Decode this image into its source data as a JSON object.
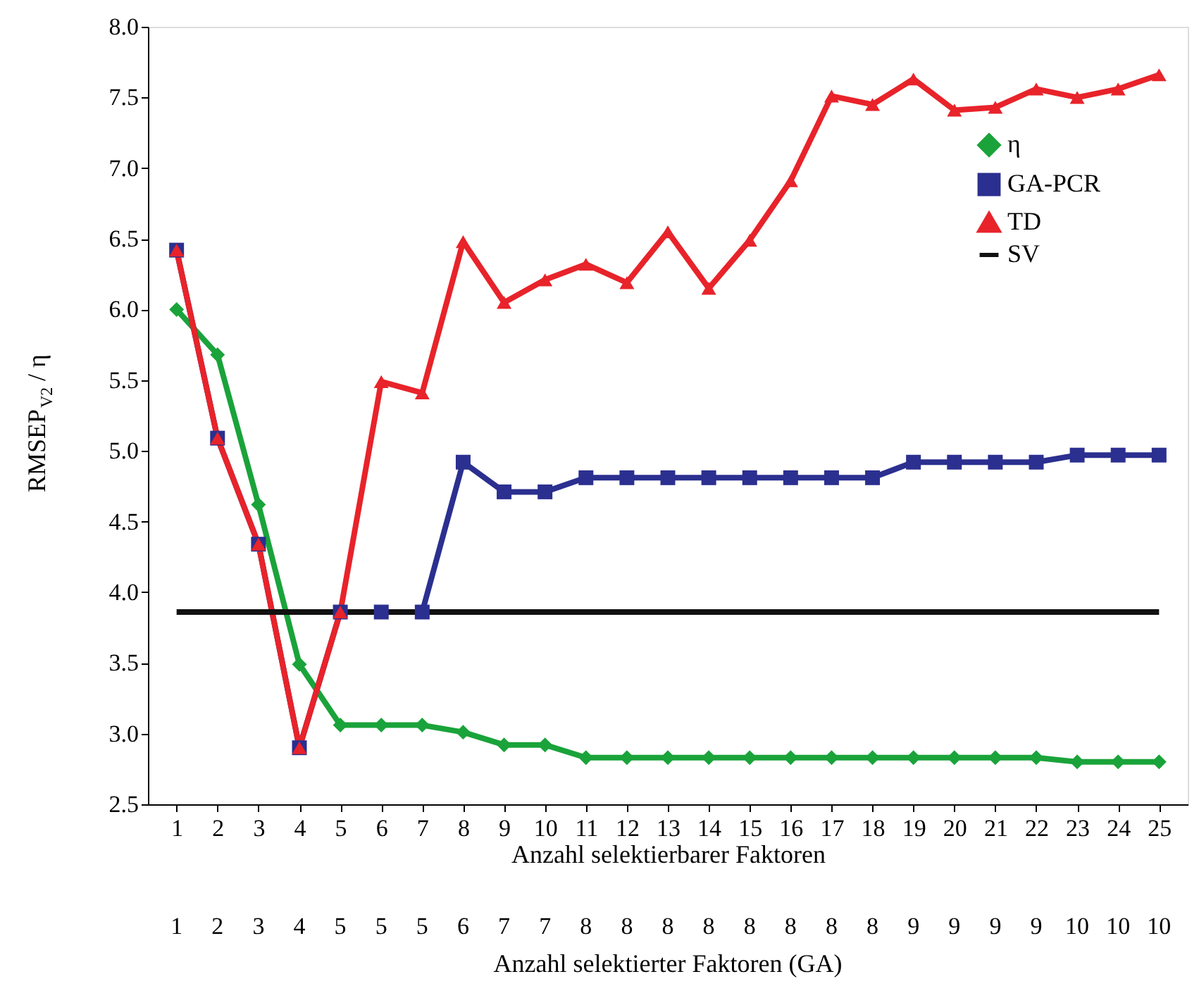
{
  "chart_data": {
    "type": "line",
    "xlabel": "Anzahl selektierbarer Faktoren",
    "ylabel": "RMSEP$_{V2}$ / η",
    "x": [
      1,
      2,
      3,
      4,
      5,
      6,
      7,
      8,
      9,
      10,
      11,
      12,
      13,
      14,
      15,
      16,
      17,
      18,
      19,
      20,
      21,
      22,
      23,
      24,
      25
    ],
    "xlim": [
      0.3,
      25.7
    ],
    "xticks": [
      1,
      2,
      3,
      4,
      5,
      6,
      7,
      8,
      9,
      10,
      11,
      12,
      13,
      14,
      15,
      16,
      17,
      18,
      19,
      20,
      21,
      22,
      23,
      24,
      25
    ],
    "annotations": [
      "1",
      "2",
      "3",
      "4",
      "5",
      "5",
      "5",
      "6",
      "7",
      "7",
      "8",
      "8",
      "8",
      "8",
      "8",
      "8",
      "8",
      "8",
      "9",
      "9",
      "9",
      "9",
      "10",
      "10",
      "10",
      "Anzahl selektierter Faktoren (GA)"
    ],
    "ylim": [
      2.5,
      8.0
    ],
    "yticks": [
      {
        "value": 2.5,
        "label": "2.5"
      },
      {
        "value": 3,
        "label": "3.0"
      },
      {
        "value": 3.5,
        "label": "3.5"
      },
      {
        "value": 4,
        "label": "4.0"
      },
      {
        "value": 4.5,
        "label": "4.5"
      },
      {
        "value": 5,
        "label": "5.0"
      },
      {
        "value": 5.5,
        "label": "5.5"
      },
      {
        "value": 6,
        "label": "6.0"
      },
      {
        "value": 6.5,
        "label": "6.5"
      },
      {
        "value": 7,
        "label": "7.0"
      },
      {
        "value": 7.5,
        "label": "7.5"
      },
      {
        "value": 8,
        "label": "8.0"
      }
    ],
    "grid": false,
    "legend": "top right",
    "line_style": "solid",
    "series": [
      {
        "name": "η",
        "color": "#1aa33a",
        "marker": "diamond",
        "values": [
          6.0,
          5.68,
          4.62,
          3.49,
          3.06,
          3.06,
          3.06,
          3.01,
          2.92,
          2.92,
          2.83,
          2.83,
          2.83,
          2.83,
          2.83,
          2.83,
          2.83,
          2.83,
          2.83,
          2.83,
          2.83,
          2.83,
          2.8,
          2.8,
          2.8
        ]
      },
      {
        "name": "GA-PCR",
        "color": "#2b2f8f",
        "marker": "square",
        "values": [
          6.42,
          5.09,
          4.34,
          2.9,
          3.86,
          3.86,
          3.86,
          4.92,
          4.71,
          4.71,
          4.81,
          4.81,
          4.81,
          4.81,
          4.81,
          4.81,
          4.81,
          4.81,
          4.92,
          4.92,
          4.92,
          4.92,
          4.97,
          4.97,
          4.97
        ]
      },
      {
        "name": "TD",
        "color": "#e8232a",
        "marker": "triangle",
        "values": [
          6.42,
          5.09,
          4.34,
          2.9,
          3.86,
          5.49,
          5.41,
          6.48,
          6.05,
          6.21,
          6.32,
          6.19,
          6.55,
          6.15,
          6.49,
          6.91,
          7.51,
          7.45,
          7.63,
          7.41,
          7.43,
          7.56,
          7.5,
          7.56,
          7.66
        ]
      },
      {
        "name": "SV",
        "color": "#111111",
        "marker": "none",
        "values": [
          3.86,
          3.86,
          3.86,
          3.86,
          3.86,
          3.86,
          3.86,
          3.86,
          3.86,
          3.86,
          3.86,
          3.86,
          3.86,
          3.86,
          3.86,
          3.86,
          3.86,
          3.86,
          3.86,
          3.86,
          3.86,
          3.86,
          3.86,
          3.86,
          3.86
        ]
      }
    ]
  }
}
